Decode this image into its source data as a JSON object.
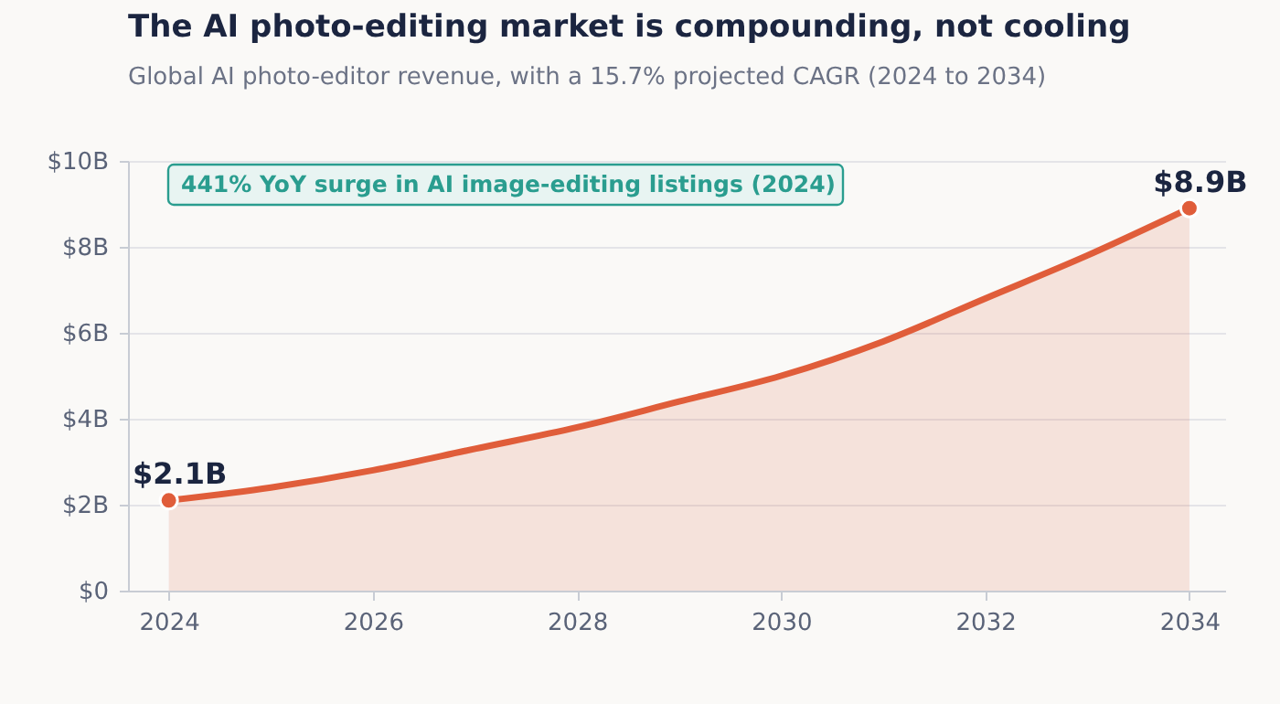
{
  "chart_data": {
    "type": "area",
    "title": "The AI photo-editing market is compounding, not cooling",
    "subtitle": "Global AI photo-editor revenue, with a 15.7% projected CAGR (2024 to 2034)",
    "annotations": [
      "441% YoY surge in AI image-editing listings (2024)"
    ],
    "x": [
      2024,
      2025,
      2026,
      2027,
      2028,
      2029,
      2030,
      2031,
      2032,
      2033,
      2034
    ],
    "series": [
      {
        "type": "area",
        "color": "#e05d3a",
        "values": [
          2.1,
          2.4,
          2.8,
          3.3,
          3.8,
          4.4,
          5.0,
          5.8,
          6.8,
          7.8,
          8.9
        ]
      },
      {
        "type": "scatter",
        "color": "#e05d3a",
        "x": [
          2024,
          2034
        ],
        "values": [
          2.1,
          8.9
        ],
        "value_labels": [
          "$2.1B",
          "$8.9B"
        ]
      }
    ],
    "xlim": [
      2023.6,
      2034.35
    ],
    "xticks": [
      2024,
      2026,
      2028,
      2030,
      2032,
      2034
    ],
    "ylim": [
      0,
      10
    ],
    "yticks": [
      {
        "value": 0,
        "label": "$0"
      },
      {
        "value": 2,
        "label": "$2B"
      },
      {
        "value": 4,
        "label": "$4B"
      },
      {
        "value": 6,
        "label": "$6B"
      },
      {
        "value": 8,
        "label": "$8B"
      },
      {
        "value": 10,
        "label": "$10B"
      }
    ],
    "grid": "y"
  }
}
